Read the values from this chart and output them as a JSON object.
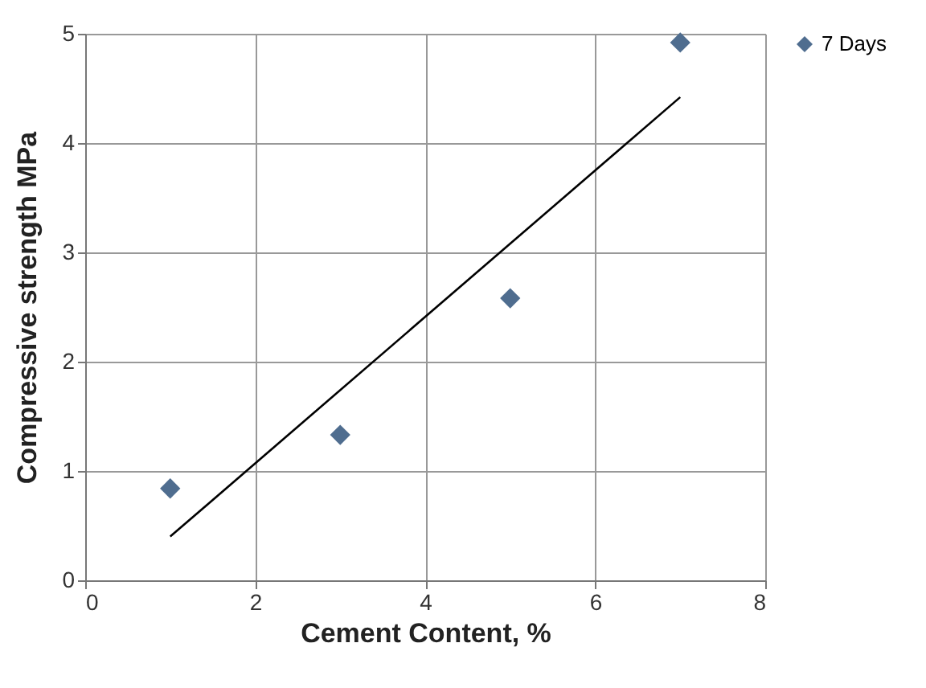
{
  "chart_data": {
    "type": "scatter",
    "xlabel": "Cement Content, %",
    "ylabel": "Compressive strength MPa",
    "xlim": [
      0,
      8
    ],
    "xticks": [
      0,
      2,
      4,
      6,
      8
    ],
    "ylim": [
      0,
      5
    ],
    "yticks": [
      0,
      1,
      2,
      3,
      4,
      5
    ],
    "grid": true,
    "legend": "right",
    "series": [
      {
        "name": "7 Days",
        "marker": "diamond",
        "color": "#4f6d8f",
        "x": [
          1,
          3,
          5,
          7
        ],
        "values": [
          0.84,
          1.33,
          2.58,
          4.92
        ]
      },
      {
        "type": "line",
        "color": "#000000",
        "x": [
          1,
          7
        ],
        "values": [
          0.4,
          4.42
        ]
      }
    ]
  }
}
